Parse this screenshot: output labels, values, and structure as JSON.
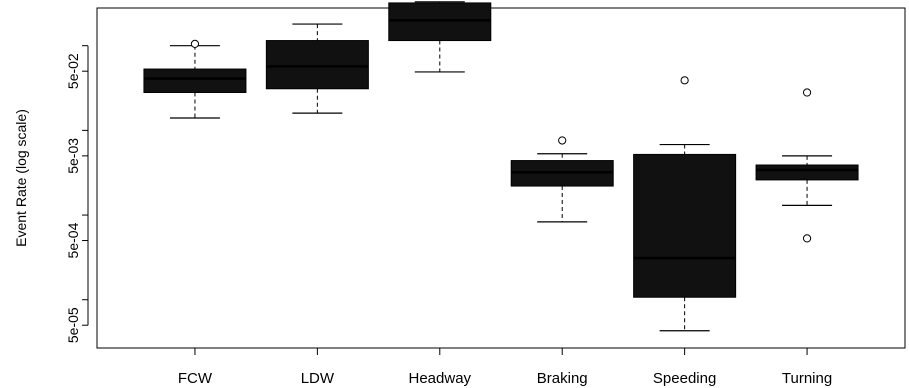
{
  "chart_data": {
    "type": "boxplot",
    "ylabel": "Event Rate (log scale)",
    "yscale": "log",
    "ylim": [
      3e-05,
      0.25
    ],
    "yticks": [
      {
        "value": 0.05,
        "label": "5e-02"
      },
      {
        "value": 0.005,
        "label": "5e-03"
      },
      {
        "value": 0.0005,
        "label": "5e-04"
      },
      {
        "value": 5e-05,
        "label": "5e-05"
      }
    ],
    "minor_ticks": [
      0.1,
      0.01,
      0.001,
      0.0001
    ],
    "box_color": "#111111",
    "categories": [
      "FCW",
      "LDW",
      "Headway",
      "Braking",
      "Speeding",
      "Turning"
    ],
    "boxes": [
      {
        "name": "FCW",
        "whisker_low": 0.014,
        "q1": 0.028,
        "median": 0.041,
        "q3": 0.053,
        "whisker_high": 0.1,
        "outliers": [
          0.105
        ]
      },
      {
        "name": "LDW",
        "whisker_low": 0.016,
        "q1": 0.031,
        "median": 0.057,
        "q3": 0.115,
        "whisker_high": 0.18,
        "outliers": []
      },
      {
        "name": "Headway",
        "whisker_low": 0.049,
        "q1": 0.115,
        "median": 0.2,
        "q3": 0.32,
        "whisker_high": 0.33,
        "outliers": []
      },
      {
        "name": "Braking",
        "whisker_low": 0.00083,
        "q1": 0.0022,
        "median": 0.0032,
        "q3": 0.0044,
        "whisker_high": 0.0053,
        "outliers": [
          0.0076
        ]
      },
      {
        "name": "Speeding",
        "whisker_low": 4.3e-05,
        "q1": 0.000107,
        "median": 0.00031,
        "q3": 0.0052,
        "whisker_high": 0.0068,
        "outliers": [
          0.039
        ]
      },
      {
        "name": "Turning",
        "whisker_low": 0.0013,
        "q1": 0.0026,
        "median": 0.0034,
        "q3": 0.0039,
        "whisker_high": 0.005,
        "outliers": [
          0.00053,
          0.028
        ]
      }
    ]
  }
}
